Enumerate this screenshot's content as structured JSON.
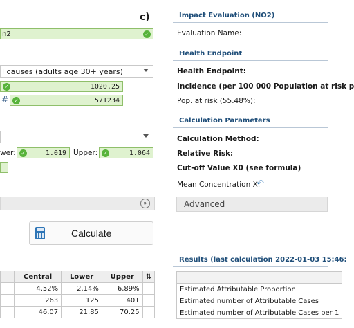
{
  "panel_label": "c)",
  "left": {
    "top_field_value": "n2",
    "cause_select_value": "l causes (adults age 30+ years)",
    "field1_value": "1020.25",
    "hash_symbol": "#",
    "field2_value": "571234",
    "lower_label": "wer:",
    "lower_value": "1.019",
    "upper_label": "Upper:",
    "upper_value": "1.064",
    "calculate_label": "Calculate",
    "table": {
      "headers": [
        "Central",
        "Lower",
        "Upper"
      ],
      "rows": [
        [
          "4.52%",
          "2.14%",
          "6.89%"
        ],
        [
          "263",
          "125",
          "401"
        ],
        [
          "46.07",
          "21.85",
          "70.25"
        ]
      ]
    }
  },
  "right": {
    "impact_header": "Impact Evaluation (NO2)",
    "evaluation_name_label": "Evaluation Name:",
    "health_endpoint_header": "Health Endpoint",
    "health_endpoint_label": "Health Endpoint:",
    "incidence_label": "Incidence (per 100 000 Population at risk p",
    "pop_at_risk_label": "Pop. at risk (55.48%):",
    "calc_params_header": "Calculation Parameters",
    "calc_method_label": "Calculation Method:",
    "relative_risk_label": "Relative Risk:",
    "cutoff_label": "Cut-off Value X0 (see formula)",
    "mean_conc_label": "Mean Concentration X:",
    "advanced_label": "Advanced",
    "results_header": "Results (last calculation 2022-01-03 15:46:",
    "results_rows": [
      "Estimated Attributable Proportion",
      "Estimated number of Attributable Cases",
      "Estimated number of Attributable Cases per 1"
    ]
  },
  "colors": {
    "header_blue": "#1f4e79",
    "valid_green": "#57b33a",
    "field_green": "#dff2cf"
  }
}
